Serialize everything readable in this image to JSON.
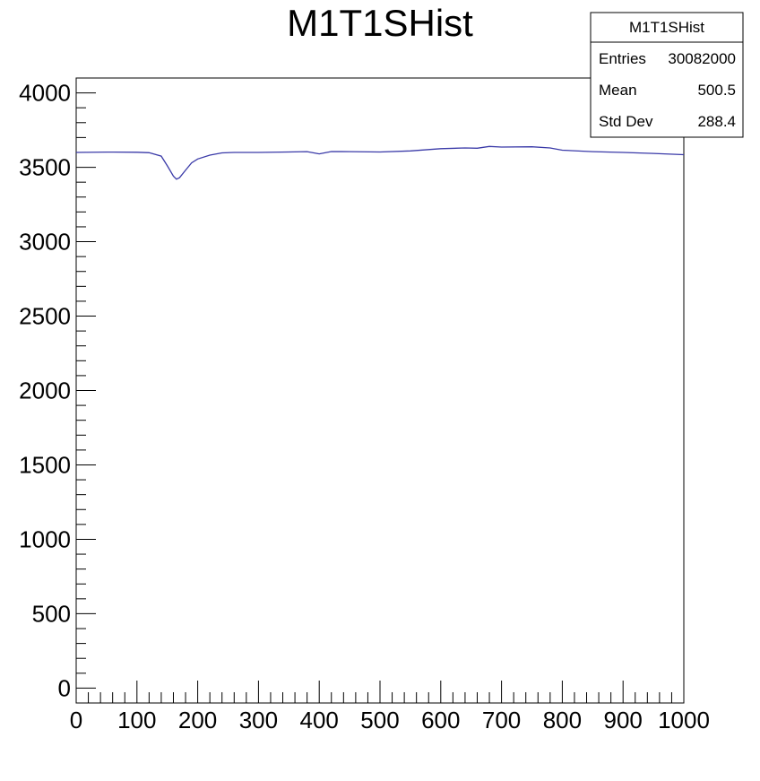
{
  "chart_data": {
    "type": "line",
    "title": "M1T1SHist",
    "xlabel": "",
    "ylabel": "",
    "xlim": [
      0,
      1000
    ],
    "ylim": [
      -100,
      4100
    ],
    "x_ticks": [
      "0",
      "100",
      "200",
      "300",
      "400",
      "500",
      "600",
      "700",
      "800",
      "900",
      "1000"
    ],
    "y_ticks": [
      "0",
      "500",
      "1000",
      "1500",
      "2000",
      "2500",
      "3000",
      "3500",
      "4000"
    ],
    "grid": false,
    "series": [
      {
        "name": "",
        "color": "#3a3aa8",
        "x": [
          0,
          50,
          100,
          120,
          140,
          150,
          160,
          165,
          170,
          180,
          190,
          200,
          220,
          240,
          260,
          300,
          350,
          380,
          400,
          420,
          450,
          500,
          550,
          600,
          640,
          660,
          680,
          700,
          750,
          780,
          800,
          850,
          900,
          950,
          1000
        ],
        "y": [
          3600,
          3602,
          3601,
          3598,
          3575,
          3510,
          3440,
          3420,
          3430,
          3480,
          3530,
          3556,
          3582,
          3597,
          3600,
          3600,
          3603,
          3605,
          3590,
          3606,
          3605,
          3603,
          3610,
          3625,
          3630,
          3628,
          3640,
          3636,
          3638,
          3630,
          3615,
          3605,
          3600,
          3593,
          3585
        ]
      }
    ]
  },
  "stats_box": {
    "title": "M1T1SHist",
    "rows": [
      {
        "label": "Entries",
        "value": "30082000"
      },
      {
        "label": "Mean",
        "value": "500.5"
      },
      {
        "label": "Std Dev",
        "value": "288.4"
      }
    ]
  }
}
